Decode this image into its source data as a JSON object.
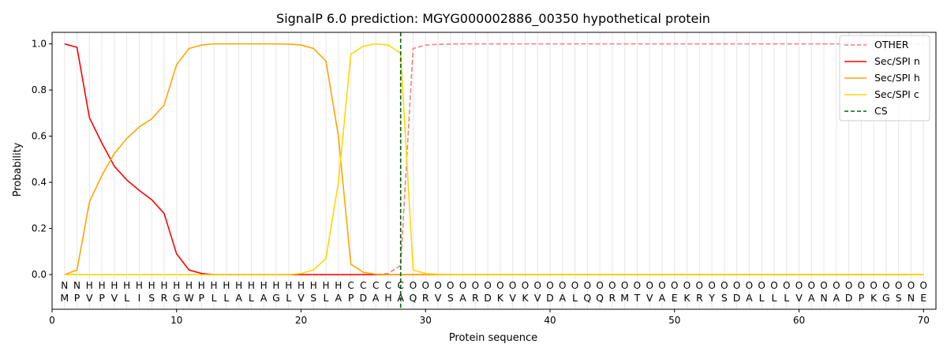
{
  "chart_data": {
    "type": "line",
    "title": "SignalP 6.0 prediction: MGYG000002886_00350 hypothetical protein",
    "xlabel": "Protein sequence",
    "ylabel": "Probability",
    "xlim": [
      0,
      71
    ],
    "ylim": [
      -0.15,
      1.05
    ],
    "xticks": [
      0,
      10,
      20,
      30,
      40,
      50,
      60,
      70
    ],
    "yticks": [
      0.0,
      0.2,
      0.4,
      0.6,
      0.8,
      1.0
    ],
    "grid": "vertical lines at every residue",
    "legend_position": "top-right",
    "sequence": [
      "M",
      "P",
      "V",
      "P",
      "V",
      "L",
      "I",
      "S",
      "R",
      "G",
      "W",
      "P",
      "L",
      "L",
      "A",
      "L",
      "A",
      "G",
      "L",
      "V",
      "S",
      "L",
      "A",
      "P",
      "D",
      "A",
      "H",
      "A",
      "Q",
      "R",
      "V",
      "S",
      "A",
      "R",
      "D",
      "K",
      "V",
      "K",
      "V",
      "D",
      "A",
      "L",
      "Q",
      "Q",
      "R",
      "M",
      "T",
      "V",
      "A",
      "E",
      "K",
      "R",
      "Y",
      "S",
      "D",
      "A",
      "L",
      "L",
      "L",
      "V",
      "A",
      "N",
      "A",
      "D",
      "P",
      "K",
      "G",
      "S",
      "N",
      "E"
    ],
    "labels": [
      "N",
      "N",
      "H",
      "H",
      "H",
      "H",
      "H",
      "H",
      "H",
      "H",
      "H",
      "H",
      "H",
      "H",
      "H",
      "H",
      "H",
      "H",
      "H",
      "H",
      "H",
      "H",
      "H",
      "C",
      "C",
      "C",
      "C",
      "C",
      "O",
      "O",
      "O",
      "O",
      "O",
      "O",
      "O",
      "O",
      "O",
      "O",
      "O",
      "O",
      "O",
      "O",
      "O",
      "O",
      "O",
      "O",
      "O",
      "O",
      "O",
      "O",
      "O",
      "O",
      "O",
      "O",
      "O",
      "O",
      "O",
      "O",
      "O",
      "O",
      "O",
      "O",
      "O",
      "O",
      "O",
      "O",
      "O",
      "O",
      "O",
      "O"
    ],
    "label_colors": {
      "N": "#ff0000",
      "H": "#ffa500",
      "C": "#ffd700",
      "O": "#808080"
    },
    "x": [
      1,
      2,
      3,
      4,
      5,
      6,
      7,
      8,
      9,
      10,
      11,
      12,
      13,
      14,
      15,
      16,
      17,
      18,
      19,
      20,
      21,
      22,
      23,
      24,
      25,
      26,
      27,
      28,
      29,
      30,
      31,
      32,
      33,
      34,
      35,
      36,
      37,
      38,
      39,
      40,
      41,
      42,
      43,
      44,
      45,
      46,
      47,
      48,
      49,
      50,
      51,
      52,
      53,
      54,
      55,
      56,
      57,
      58,
      59,
      60,
      61,
      62,
      63,
      64,
      65,
      66,
      67,
      68,
      69,
      70
    ],
    "series": [
      {
        "name": "OTHER",
        "color": "#f08080",
        "dash": "dashed",
        "values": [
          0,
          0,
          0,
          0,
          0,
          0,
          0,
          0,
          0,
          0,
          0,
          0,
          0,
          0,
          0,
          0,
          0,
          0,
          0,
          0,
          0,
          0,
          0,
          0,
          0,
          0,
          0.005,
          0.04,
          0.98,
          0.995,
          0.998,
          0.999,
          1,
          1,
          1,
          1,
          1,
          1,
          1,
          1,
          1,
          1,
          1,
          1,
          1,
          1,
          1,
          1,
          1,
          1,
          1,
          1,
          1,
          1,
          1,
          1,
          1,
          1,
          1,
          1,
          1,
          1,
          1,
          1,
          1,
          1,
          1,
          1,
          1,
          1
        ]
      },
      {
        "name": "Sec/SPI n",
        "color": "#ff0000",
        "dash": "solid",
        "values": [
          1.0,
          0.985,
          0.68,
          0.57,
          0.47,
          0.41,
          0.365,
          0.325,
          0.265,
          0.09,
          0.02,
          0.005,
          0,
          0,
          0,
          0,
          0,
          0,
          0,
          0,
          0,
          0,
          0,
          0,
          0,
          0,
          0,
          0,
          0,
          0,
          0,
          0,
          0,
          0,
          0,
          0,
          0,
          0,
          0,
          0,
          0,
          0,
          0,
          0,
          0,
          0,
          0,
          0,
          0,
          0,
          0,
          0,
          0,
          0,
          0,
          0,
          0,
          0,
          0,
          0,
          0,
          0,
          0,
          0,
          0,
          0,
          0,
          0,
          0,
          0
        ]
      },
      {
        "name": "Sec/SPI h",
        "color": "#ffa500",
        "dash": "solid",
        "values": [
          0,
          0.02,
          0.315,
          0.43,
          0.525,
          0.59,
          0.64,
          0.675,
          0.735,
          0.91,
          0.98,
          0.995,
          1.0,
          1.0,
          1.0,
          1.0,
          1.0,
          1.0,
          0.999,
          0.995,
          0.98,
          0.925,
          0.6,
          0.045,
          0.01,
          0.002,
          0,
          0,
          0,
          0,
          0,
          0,
          0,
          0,
          0,
          0,
          0,
          0,
          0,
          0,
          0,
          0,
          0,
          0,
          0,
          0,
          0,
          0,
          0,
          0,
          0,
          0,
          0,
          0,
          0,
          0,
          0,
          0,
          0,
          0,
          0,
          0,
          0,
          0,
          0,
          0,
          0,
          0,
          0,
          0
        ]
      },
      {
        "name": "Sec/SPI c",
        "color": "#ffd700",
        "dash": "solid",
        "values": [
          0,
          0,
          0,
          0,
          0,
          0,
          0,
          0,
          0,
          0,
          0,
          0,
          0,
          0,
          0,
          0,
          0,
          0,
          0,
          0.005,
          0.02,
          0.07,
          0.4,
          0.955,
          0.99,
          1.0,
          0.995,
          0.96,
          0.02,
          0.005,
          0.002,
          0,
          0,
          0,
          0,
          0,
          0,
          0,
          0,
          0,
          0,
          0,
          0,
          0,
          0,
          0,
          0,
          0,
          0,
          0,
          0,
          0,
          0,
          0,
          0,
          0,
          0,
          0,
          0,
          0,
          0,
          0,
          0,
          0,
          0,
          0,
          0,
          0,
          0,
          0
        ]
      }
    ],
    "cs": {
      "name": "CS",
      "x": 28,
      "color": "#006400"
    }
  }
}
